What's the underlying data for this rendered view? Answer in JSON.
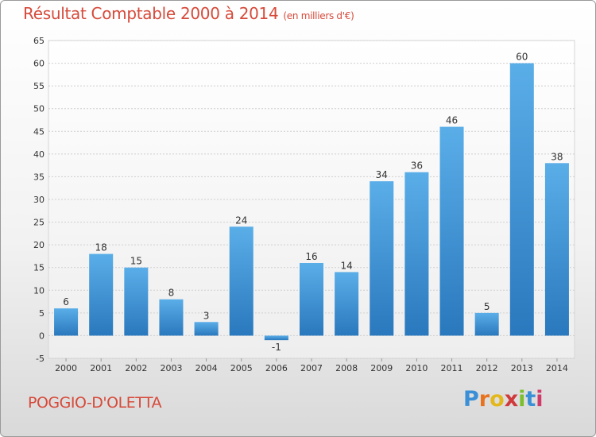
{
  "chart_data": {
    "type": "bar",
    "title": "Résultat Comptable 2000 à 2014",
    "subtitle": "(en milliers d'€)",
    "categories": [
      "2000",
      "2001",
      "2002",
      "2003",
      "2004",
      "2005",
      "2006",
      "2007",
      "2008",
      "2009",
      "2010",
      "2011",
      "2012",
      "2013",
      "2014"
    ],
    "values": [
      6,
      18,
      15,
      8,
      3,
      24,
      -1,
      16,
      14,
      34,
      36,
      46,
      5,
      60,
      38
    ],
    "data_labels": [
      "6",
      "18",
      "15",
      "8",
      "3",
      "24",
      "-1",
      "16",
      "14",
      "34",
      "36",
      "46",
      "5",
      "60",
      "38"
    ],
    "y_ticks": [
      "-5",
      "0",
      "5",
      "10",
      "15",
      "20",
      "25",
      "30",
      "35",
      "40",
      "45",
      "50",
      "55",
      "60",
      "65"
    ],
    "ylim": [
      -5,
      65
    ],
    "grid": true,
    "bar_color": "#3f8fd0"
  },
  "footer": {
    "commune": "POGGIO-D'OLETTA",
    "logo_letters": [
      "P",
      "r",
      "o",
      "x",
      "i",
      "t",
      "i"
    ],
    "logo_colors": [
      "#3a8fd6",
      "#e8731e",
      "#e3b81d",
      "#d03a3a",
      "#7cbf2e",
      "#3a8fd6",
      "#d03a6a"
    ]
  }
}
